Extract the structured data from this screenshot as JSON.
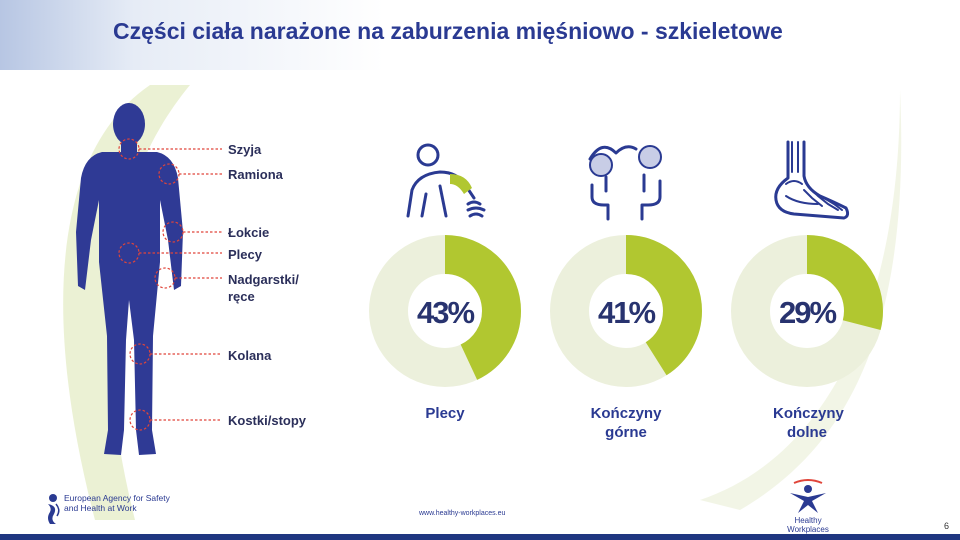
{
  "title": "Części ciała narażone na zaburzenia mięśniowo - szkieletowe",
  "body_parts": [
    {
      "label": "Szyja"
    },
    {
      "label": "Ramiona"
    },
    {
      "label": "Łokcie"
    },
    {
      "label": "Plecy"
    },
    {
      "label": "Nadgarstki/ ręce"
    },
    {
      "label": "Kolana"
    },
    {
      "label": "Kostki/stopy"
    }
  ],
  "stats": [
    {
      "value_label": "43%",
      "value": 43,
      "label": "Plecy",
      "icon": "back-pain-icon"
    },
    {
      "value_label": "41%",
      "value": 41,
      "label": "Kończyny górne",
      "icon": "upper-limbs-icon"
    },
    {
      "value_label": "29%",
      "value": 29,
      "label": "Kończyny dolne",
      "icon": "foot-skeleton-icon"
    }
  ],
  "colors": {
    "title": "#2a3a92",
    "figure": "#2f3a95",
    "donut_value": "#b1c730",
    "donut_rest": "#ecf0dc",
    "marker": "#e0453a",
    "swoosh": "#e9efcf"
  },
  "footer": {
    "agency_name": "European Agency for Safety and Health at Work",
    "url": "www.healthy-workplaces.eu",
    "campaign": "Healthy Workplaces",
    "page_number": "6"
  }
}
